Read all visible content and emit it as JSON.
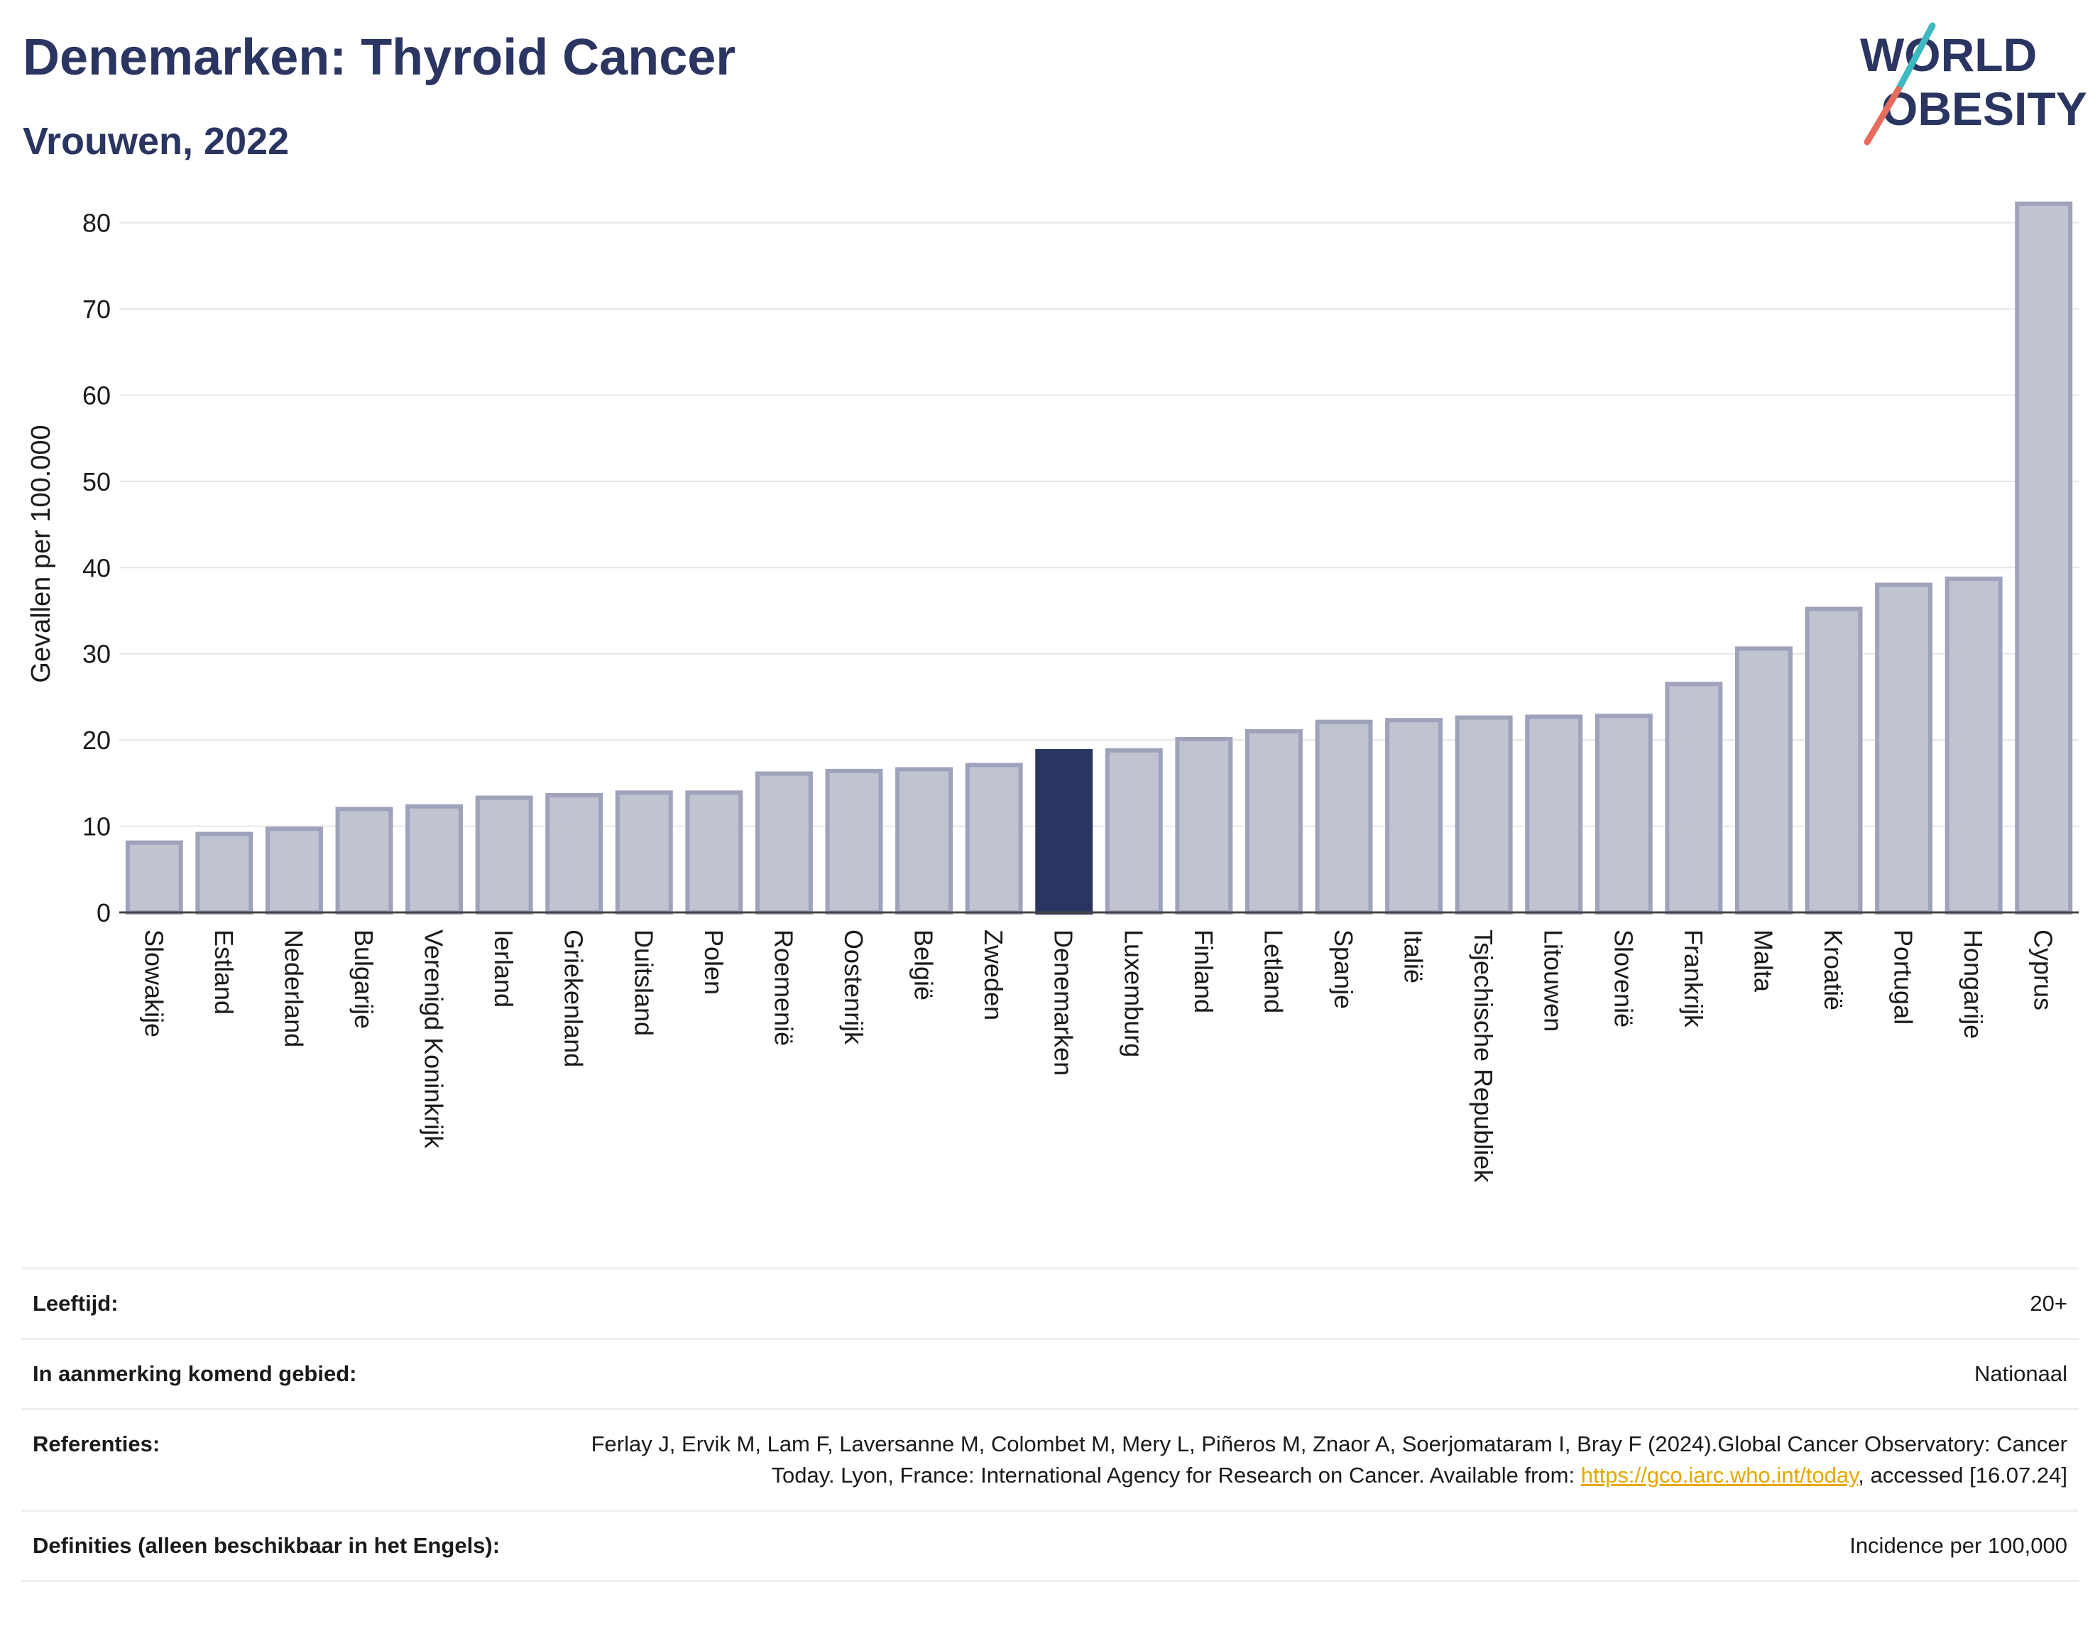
{
  "header": {
    "title": "Denemarken: Thyroid Cancer",
    "subtitle": "Vrouwen, 2022"
  },
  "logo": {
    "line1": "WORLD",
    "line2": "OBESITY"
  },
  "colors": {
    "bar": "#c0c3d0",
    "bar_border": "#9ea2bb",
    "highlight": "#2b3561",
    "grid": "#e6e6e6",
    "text": "#1a1a1a"
  },
  "chart_data": {
    "type": "bar",
    "ylabel": "Gevallen per 100.000",
    "ylim": [
      0,
      84
    ],
    "yticks": [
      0,
      10,
      20,
      30,
      40,
      50,
      60,
      70,
      80
    ],
    "grid": true,
    "highlight": "Denemarken",
    "categories": [
      "Slowakije",
      "Estland",
      "Nederland",
      "Bulgarije",
      "Verenigd Koninkrijk",
      "Ierland",
      "Griekenland",
      "Duitsland",
      "Polen",
      "Roemenië",
      "Oostenrijk",
      "België",
      "Zweden",
      "Denemarken",
      "Luxemburg",
      "Finland",
      "Letland",
      "Spanje",
      "Italië",
      "Tsjechische Republiek",
      "Litouwen",
      "Slovenië",
      "Frankrijk",
      "Malta",
      "Kroatië",
      "Portugal",
      "Hongarije",
      "Cyprus"
    ],
    "values": [
      8.1,
      9.1,
      9.7,
      12.0,
      12.3,
      13.3,
      13.6,
      13.9,
      13.9,
      16.1,
      16.4,
      16.6,
      17.1,
      18.7,
      18.8,
      20.1,
      21.0,
      22.1,
      22.3,
      22.6,
      22.7,
      22.8,
      26.5,
      30.6,
      35.2,
      38.0,
      38.7,
      82.2
    ]
  },
  "meta": {
    "rows": [
      {
        "label": "Leeftijd:",
        "value": "20+"
      },
      {
        "label": "In aanmerking komend gebied:",
        "value": "Nationaal"
      },
      {
        "label": "Referenties:",
        "value_before": "Ferlay J, Ervik M, Lam F, Laversanne M, Colombet M, Mery L, Piñeros M, Znaor A, Soerjomataram I, Bray F (2024).Global Cancer Observatory: Cancer Today. Lyon, France: International Agency for Research on Cancer. Available from: ",
        "link": "https://gco.iarc.who.int/today",
        "value_after": ", accessed [16.07.24]"
      },
      {
        "label": "Definities (alleen beschikbaar in het Engels):",
        "value": "Incidence per 100,000"
      }
    ]
  }
}
